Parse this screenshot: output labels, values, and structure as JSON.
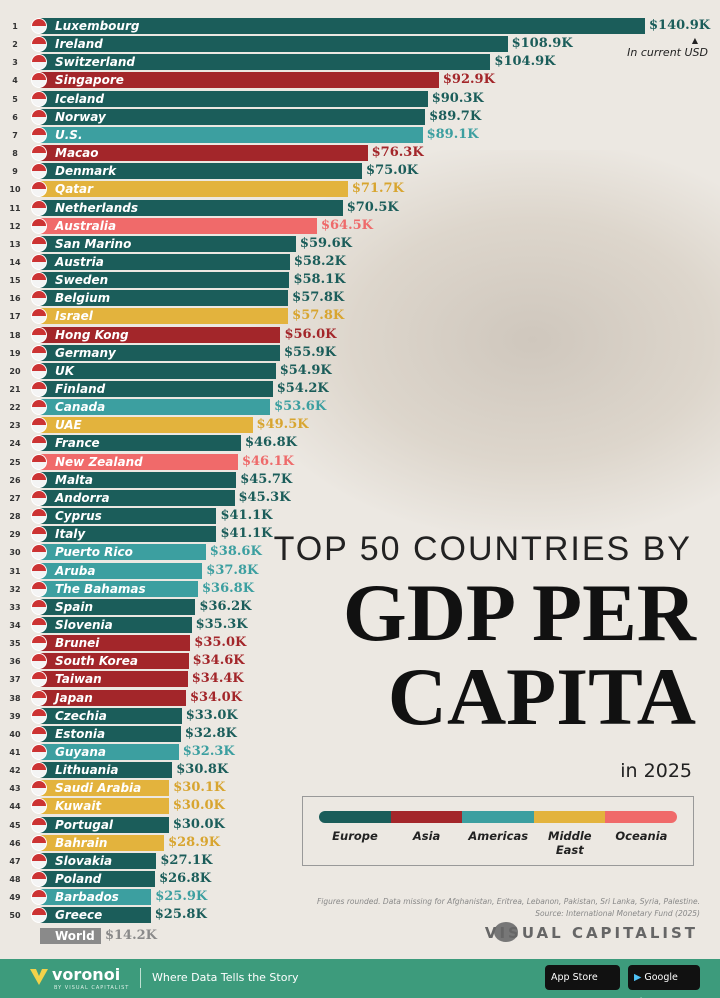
{
  "chart_data": {
    "type": "bar",
    "orientation": "horizontal",
    "title_line1": "TOP 50 COUNTRIES BY",
    "title_line2": "GDP PER",
    "title_line3": "CAPITA",
    "subtitle": "in 2025",
    "unit_note": "In current USD",
    "value_prefix": "$",
    "value_suffix": "K",
    "xlim": [
      0,
      140.9
    ],
    "grid": false,
    "legend_placement": "bottom-right",
    "regions": {
      "Europe": "#1b5d5a",
      "Asia": "#a3262a",
      "Americas": "#3c9fa0",
      "Middle East": "#e3b33d",
      "Oceania": "#f06a6a"
    },
    "region_text_colors": {
      "Europe": "#1b5d5a",
      "Asia": "#a3262a",
      "Americas": "#3c9fa0",
      "Middle East": "#d8a530",
      "Oceania": "#ee6b6b"
    },
    "rows": [
      {
        "rank": "1",
        "country": "Luxembourg",
        "value": 140.9,
        "label": "$140.9K",
        "region": "Europe"
      },
      {
        "rank": "2",
        "country": "Ireland",
        "value": 108.9,
        "label": "$108.9K",
        "region": "Europe"
      },
      {
        "rank": "3",
        "country": "Switzerland",
        "value": 104.9,
        "label": "$104.9K",
        "region": "Europe"
      },
      {
        "rank": "4",
        "country": "Singapore",
        "value": 92.9,
        "label": "$92.9K",
        "region": "Asia"
      },
      {
        "rank": "5",
        "country": "Iceland",
        "value": 90.3,
        "label": "$90.3K",
        "region": "Europe"
      },
      {
        "rank": "6",
        "country": "Norway",
        "value": 89.7,
        "label": "$89.7K",
        "region": "Europe"
      },
      {
        "rank": "7",
        "country": "U.S.",
        "value": 89.1,
        "label": "$89.1K",
        "region": "Americas"
      },
      {
        "rank": "8",
        "country": "Macao",
        "value": 76.3,
        "label": "$76.3K",
        "region": "Asia"
      },
      {
        "rank": "9",
        "country": "Denmark",
        "value": 75.0,
        "label": "$75.0K",
        "region": "Europe"
      },
      {
        "rank": "10",
        "country": "Qatar",
        "value": 71.7,
        "label": "$71.7K",
        "region": "Middle East"
      },
      {
        "rank": "11",
        "country": "Netherlands",
        "value": 70.5,
        "label": "$70.5K",
        "region": "Europe"
      },
      {
        "rank": "12",
        "country": "Australia",
        "value": 64.5,
        "label": "$64.5K",
        "region": "Oceania"
      },
      {
        "rank": "13",
        "country": "San Marino",
        "value": 59.6,
        "label": "$59.6K",
        "region": "Europe"
      },
      {
        "rank": "14",
        "country": "Austria",
        "value": 58.2,
        "label": "$58.2K",
        "region": "Europe"
      },
      {
        "rank": "15",
        "country": "Sweden",
        "value": 58.1,
        "label": "$58.1K",
        "region": "Europe"
      },
      {
        "rank": "16",
        "country": "Belgium",
        "value": 57.8,
        "label": "$57.8K",
        "region": "Europe"
      },
      {
        "rank": "17",
        "country": "Israel",
        "value": 57.8,
        "label": "$57.8K",
        "region": "Middle East"
      },
      {
        "rank": "18",
        "country": "Hong Kong",
        "value": 56.0,
        "label": "$56.0K",
        "region": "Asia"
      },
      {
        "rank": "19",
        "country": "Germany",
        "value": 55.9,
        "label": "$55.9K",
        "region": "Europe"
      },
      {
        "rank": "20",
        "country": "UK",
        "value": 54.9,
        "label": "$54.9K",
        "region": "Europe"
      },
      {
        "rank": "21",
        "country": "Finland",
        "value": 54.2,
        "label": "$54.2K",
        "region": "Europe"
      },
      {
        "rank": "22",
        "country": "Canada",
        "value": 53.6,
        "label": "$53.6K",
        "region": "Americas"
      },
      {
        "rank": "23",
        "country": "UAE",
        "value": 49.5,
        "label": "$49.5K",
        "region": "Middle East"
      },
      {
        "rank": "24",
        "country": "France",
        "value": 46.8,
        "label": "$46.8K",
        "region": "Europe"
      },
      {
        "rank": "25",
        "country": "New Zealand",
        "value": 46.1,
        "label": "$46.1K",
        "region": "Oceania"
      },
      {
        "rank": "26",
        "country": "Malta",
        "value": 45.7,
        "label": "$45.7K",
        "region": "Europe"
      },
      {
        "rank": "27",
        "country": "Andorra",
        "value": 45.3,
        "label": "$45.3K",
        "region": "Europe"
      },
      {
        "rank": "28",
        "country": "Cyprus",
        "value": 41.1,
        "label": "$41.1K",
        "region": "Europe"
      },
      {
        "rank": "29",
        "country": "Italy",
        "value": 41.1,
        "label": "$41.1K",
        "region": "Europe"
      },
      {
        "rank": "30",
        "country": "Puerto Rico",
        "value": 38.6,
        "label": "$38.6K",
        "region": "Americas"
      },
      {
        "rank": "31",
        "country": "Aruba",
        "value": 37.8,
        "label": "$37.8K",
        "region": "Americas"
      },
      {
        "rank": "32",
        "country": "The Bahamas",
        "value": 36.8,
        "label": "$36.8K",
        "region": "Americas"
      },
      {
        "rank": "33",
        "country": "Spain",
        "value": 36.2,
        "label": "$36.2K",
        "region": "Europe"
      },
      {
        "rank": "34",
        "country": "Slovenia",
        "value": 35.3,
        "label": "$35.3K",
        "region": "Europe"
      },
      {
        "rank": "35",
        "country": "Brunei",
        "value": 35.0,
        "label": "$35.0K",
        "region": "Asia"
      },
      {
        "rank": "36",
        "country": "South Korea",
        "value": 34.6,
        "label": "$34.6K",
        "region": "Asia"
      },
      {
        "rank": "37",
        "country": "Taiwan",
        "value": 34.4,
        "label": "$34.4K",
        "region": "Asia"
      },
      {
        "rank": "38",
        "country": "Japan",
        "value": 34.0,
        "label": "$34.0K",
        "region": "Asia"
      },
      {
        "rank": "39",
        "country": "Czechia",
        "value": 33.0,
        "label": "$33.0K",
        "region": "Europe"
      },
      {
        "rank": "40",
        "country": "Estonia",
        "value": 32.8,
        "label": "$32.8K",
        "region": "Europe"
      },
      {
        "rank": "41",
        "country": "Guyana",
        "value": 32.3,
        "label": "$32.3K",
        "region": "Americas"
      },
      {
        "rank": "42",
        "country": "Lithuania",
        "value": 30.8,
        "label": "$30.8K",
        "region": "Europe"
      },
      {
        "rank": "43",
        "country": "Saudi Arabia",
        "value": 30.1,
        "label": "$30.1K",
        "region": "Middle East"
      },
      {
        "rank": "44",
        "country": "Kuwait",
        "value": 30.0,
        "label": "$30.0K",
        "region": "Middle East"
      },
      {
        "rank": "45",
        "country": "Portugal",
        "value": 30.0,
        "label": "$30.0K",
        "region": "Europe"
      },
      {
        "rank": "46",
        "country": "Bahrain",
        "value": 28.9,
        "label": "$28.9K",
        "region": "Middle East"
      },
      {
        "rank": "47",
        "country": "Slovakia",
        "value": 27.1,
        "label": "$27.1K",
        "region": "Europe"
      },
      {
        "rank": "48",
        "country": "Poland",
        "value": 26.8,
        "label": "$26.8K",
        "region": "Europe"
      },
      {
        "rank": "49",
        "country": "Barbados",
        "value": 25.9,
        "label": "$25.9K",
        "region": "Americas"
      },
      {
        "rank": "50",
        "country": "Greece",
        "value": 25.8,
        "label": "$25.8K",
        "region": "Europe"
      }
    ],
    "world": {
      "country": "World",
      "value": 14.2,
      "label": "$14.2K",
      "color": "#8a8a8a"
    }
  },
  "legend": {
    "items": [
      {
        "label": "Europe",
        "color": "#1b5d5a"
      },
      {
        "label": "Asia",
        "color": "#a3262a"
      },
      {
        "label": "Americas",
        "color": "#3c9fa0"
      },
      {
        "label": "Middle East",
        "color": "#e3b33d"
      },
      {
        "label": "Oceania",
        "color": "#f06a6a"
      }
    ]
  },
  "notes": {
    "line1": "Figures rounded. Data missing for Afghanistan, Eritrea, Lebanon, Pakistan, Sri Lanka, Syria, Palestine.",
    "line2": "Source: International Monetary Fund (2025)"
  },
  "brand": {
    "name": "VISUAL CAPITALIST"
  },
  "footer": {
    "logo": "voronoi",
    "logo_sub": "BY VISUAL CAPITALIST",
    "tagline": "Where Data Tells the Story",
    "app_store": "App Store",
    "google_play": "Google Play",
    "background": "#3d9b7c"
  }
}
